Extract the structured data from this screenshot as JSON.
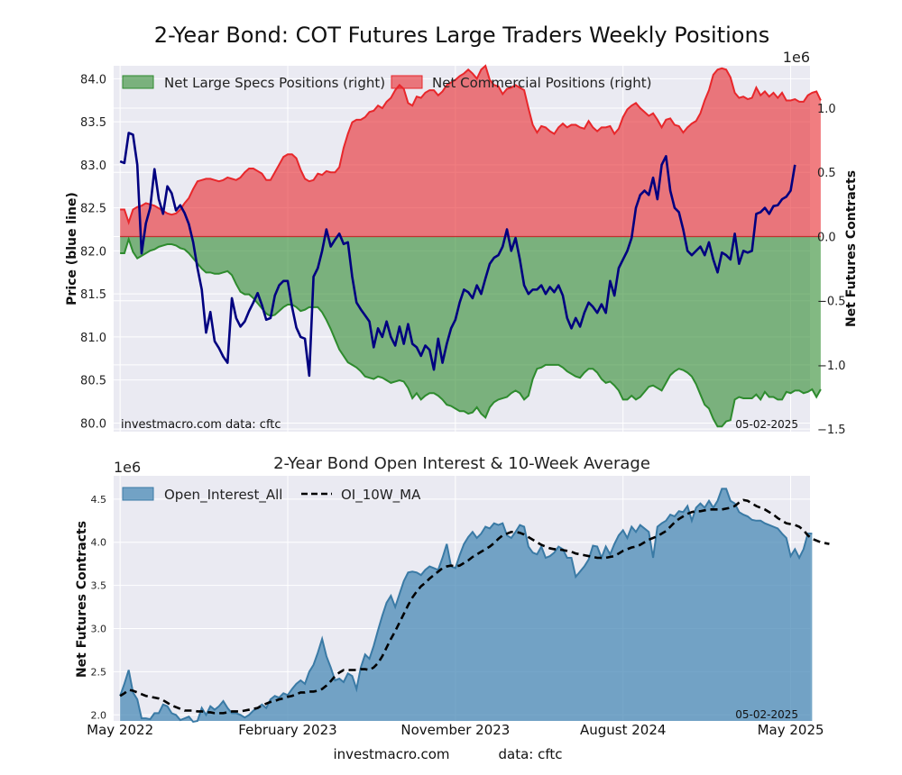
{
  "figure": {
    "title": "2-Year Bond: COT Futures Large Traders Weekly Positions",
    "footer_site": "investmacro.com",
    "footer_source": "data: cftc"
  },
  "chart_data": [
    {
      "type": "area",
      "title": "2-Year Bond: COT Futures Large Traders Weekly Positions",
      "ylabel_left": "Price (blue line)",
      "ylabel_right": "Net Futures Contracts",
      "right_axis_multiplier": "1e6",
      "ylim_left": [
        79.9,
        84.15
      ],
      "ylim_right": [
        -1.52,
        1.33
      ],
      "yticks_left": [
        "80.0",
        "80.5",
        "81.0",
        "81.5",
        "82.0",
        "82.5",
        "83.0",
        "83.5",
        "84.0"
      ],
      "yticks_right": [
        "−1.5",
        "−1.0",
        "−0.5",
        "0.0",
        "0.5",
        "1.0"
      ],
      "xlim": [
        -1.5,
        160.5
      ],
      "grid": true,
      "legend_placement": "top-left",
      "watermark_left": "investmacro.com   data: cftc",
      "date_label": "05-02-2025",
      "colors": {
        "specs": "#2e8b2e",
        "commercial": "#e8272b",
        "price": "#000080"
      },
      "series": [
        {
          "name": "Net Large Specs Positions (right)",
          "axis": "right",
          "values": [
            -0.13,
            -0.13,
            -0.02,
            -0.12,
            -0.17,
            -0.15,
            -0.13,
            -0.11,
            -0.1,
            -0.08,
            -0.07,
            -0.06,
            -0.06,
            -0.07,
            -0.09,
            -0.1,
            -0.13,
            -0.17,
            -0.21,
            -0.25,
            -0.28,
            -0.28,
            -0.29,
            -0.29,
            -0.28,
            -0.27,
            -0.3,
            -0.37,
            -0.43,
            -0.45,
            -0.45,
            -0.48,
            -0.52,
            -0.56,
            -0.6,
            -0.62,
            -0.61,
            -0.58,
            -0.55,
            -0.53,
            -0.53,
            -0.55,
            -0.58,
            -0.57,
            -0.55,
            -0.55,
            -0.55,
            -0.59,
            -0.65,
            -0.72,
            -0.8,
            -0.88,
            -0.93,
            -0.98,
            -1.0,
            -1.02,
            -1.05,
            -1.09,
            -1.1,
            -1.11,
            -1.09,
            -1.1,
            -1.12,
            -1.14,
            -1.13,
            -1.12,
            -1.13,
            -1.18,
            -1.26,
            -1.22,
            -1.27,
            -1.24,
            -1.22,
            -1.22,
            -1.24,
            -1.27,
            -1.31,
            -1.32,
            -1.34,
            -1.36,
            -1.36,
            -1.38,
            -1.37,
            -1.33,
            -1.38,
            -1.41,
            -1.33,
            -1.29,
            -1.27,
            -1.26,
            -1.25,
            -1.22,
            -1.2,
            -1.22,
            -1.27,
            -1.24,
            -1.11,
            -1.03,
            -1.02,
            -1.0,
            -1.0,
            -1.0,
            -1.0,
            -1.02,
            -1.05,
            -1.07,
            -1.09,
            -1.1,
            -1.06,
            -1.03,
            -1.03,
            -1.06,
            -1.11,
            -1.14,
            -1.13,
            -1.16,
            -1.2,
            -1.27,
            -1.27,
            -1.24,
            -1.27,
            -1.25,
            -1.21,
            -1.17,
            -1.16,
            -1.18,
            -1.2,
            -1.14,
            -1.08,
            -1.05,
            -1.03,
            -1.04,
            -1.06,
            -1.09,
            -1.15,
            -1.23,
            -1.31,
            -1.34,
            -1.42,
            -1.48,
            -1.48,
            -1.44,
            -1.43,
            -1.27,
            -1.25,
            -1.26,
            -1.26,
            -1.26,
            -1.23,
            -1.27,
            -1.21,
            -1.25,
            -1.25,
            -1.27,
            -1.27,
            -1.21,
            -1.22,
            -1.2,
            -1.2,
            -1.22,
            -1.21,
            -1.19,
            -1.25,
            -1.19
          ]
        },
        {
          "name": "Net Commercial Positions (right)",
          "axis": "right",
          "values": [
            0.21,
            0.21,
            0.11,
            0.21,
            0.23,
            0.24,
            0.26,
            0.25,
            0.24,
            0.22,
            0.2,
            0.18,
            0.17,
            0.18,
            0.21,
            0.26,
            0.3,
            0.37,
            0.43,
            0.44,
            0.45,
            0.45,
            0.44,
            0.43,
            0.44,
            0.46,
            0.45,
            0.44,
            0.46,
            0.5,
            0.53,
            0.53,
            0.51,
            0.49,
            0.44,
            0.44,
            0.5,
            0.56,
            0.62,
            0.64,
            0.64,
            0.61,
            0.52,
            0.45,
            0.43,
            0.44,
            0.49,
            0.48,
            0.51,
            0.5,
            0.5,
            0.54,
            0.69,
            0.8,
            0.89,
            0.91,
            0.91,
            0.93,
            0.97,
            0.98,
            1.02,
            1.0,
            1.05,
            1.08,
            1.14,
            1.18,
            1.15,
            1.04,
            1.02,
            1.09,
            1.08,
            1.12,
            1.14,
            1.14,
            1.1,
            1.13,
            1.18,
            1.2,
            1.22,
            1.25,
            1.27,
            1.3,
            1.27,
            1.23,
            1.3,
            1.33,
            1.22,
            1.18,
            1.17,
            1.11,
            1.15,
            1.16,
            1.18,
            1.16,
            1.14,
            1.0,
            0.87,
            0.81,
            0.86,
            0.85,
            0.82,
            0.8,
            0.85,
            0.88,
            0.85,
            0.87,
            0.87,
            0.85,
            0.84,
            0.9,
            0.85,
            0.82,
            0.85,
            0.85,
            0.86,
            0.8,
            0.84,
            0.93,
            0.99,
            1.02,
            1.04,
            1.0,
            0.97,
            0.94,
            0.96,
            0.91,
            0.85,
            0.91,
            0.92,
            0.87,
            0.86,
            0.81,
            0.85,
            0.88,
            0.9,
            0.96,
            1.06,
            1.14,
            1.26,
            1.3,
            1.31,
            1.3,
            1.24,
            1.12,
            1.08,
            1.09,
            1.07,
            1.08,
            1.16,
            1.1,
            1.13,
            1.09,
            1.12,
            1.08,
            1.12,
            1.06,
            1.06,
            1.07,
            1.05,
            1.05,
            1.1,
            1.12,
            1.13,
            1.06
          ]
        },
        {
          "name": "Price",
          "axis": "left",
          "type": "line",
          "values": [
            83.04,
            83.02,
            83.37,
            83.35,
            83.0,
            81.97,
            82.32,
            82.5,
            82.95,
            82.6,
            82.43,
            82.75,
            82.67,
            82.47,
            82.53,
            82.44,
            82.31,
            82.1,
            81.8,
            81.55,
            81.05,
            81.29,
            80.95,
            80.87,
            80.77,
            80.7,
            81.45,
            81.22,
            81.12,
            81.18,
            81.3,
            81.4,
            81.51,
            81.37,
            81.2,
            81.22,
            81.48,
            81.6,
            81.65,
            81.65,
            81.35,
            81.11,
            81.0,
            80.98,
            80.55,
            81.7,
            81.8,
            82.0,
            82.25,
            82.05,
            82.13,
            82.2,
            82.08,
            82.1,
            81.7,
            81.4,
            81.32,
            81.25,
            81.18,
            80.88,
            81.1,
            81.0,
            81.18,
            81.0,
            80.9,
            81.12,
            80.92,
            81.15,
            80.92,
            80.88,
            80.78,
            80.9,
            80.85,
            80.62,
            80.98,
            80.7,
            80.92,
            81.1,
            81.2,
            81.4,
            81.55,
            81.52,
            81.45,
            81.6,
            81.5,
            81.68,
            81.85,
            81.92,
            81.95,
            82.05,
            82.25,
            82.0,
            82.15,
            81.9,
            81.6,
            81.5,
            81.55,
            81.55,
            81.6,
            81.5,
            81.58,
            81.52,
            81.6,
            81.48,
            81.22,
            81.1,
            81.22,
            81.12,
            81.28,
            81.4,
            81.35,
            81.28,
            81.38,
            81.28,
            81.65,
            81.48,
            81.8,
            81.9,
            82.0,
            82.15,
            82.5,
            82.65,
            82.7,
            82.65,
            82.85,
            82.6,
            83.0,
            83.1,
            82.7,
            82.5,
            82.45,
            82.25,
            82.0,
            81.95,
            82.0,
            82.05,
            81.95,
            82.1,
            81.9,
            81.75,
            81.98,
            81.95,
            81.9,
            82.2,
            81.85,
            82.0,
            81.98,
            82.0,
            82.43,
            82.45,
            82.5,
            82.43,
            82.52,
            82.53,
            82.6,
            82.63,
            82.7,
            83.0
          ]
        }
      ]
    },
    {
      "type": "area",
      "title": "2-Year Bond Open Interest & 10-Week Average",
      "ylabel": "Net Futures Contracts",
      "axis_multiplier": "1e6",
      "ylim": [
        1.93,
        4.77
      ],
      "yticks": [
        "2.0",
        "2.5",
        "3.0",
        "3.5",
        "4.0",
        "4.5"
      ],
      "xlim": [
        -1.5,
        160.5
      ],
      "x_ticks": [
        "May 2022",
        "February 2023",
        "November 2023",
        "August 2024",
        "May 2025"
      ],
      "x_tick_positions": [
        0,
        39,
        78,
        117,
        156
      ],
      "grid": true,
      "legend_placement": "top-left",
      "date_label": "05-02-2025",
      "colors": {
        "open_interest": "#4a8ab5",
        "ma": "#000000"
      },
      "series": [
        {
          "name": "Open_Interest_All",
          "values": [
            2.22,
            2.36,
            2.52,
            2.26,
            2.18,
            1.96,
            1.96,
            1.95,
            2.02,
            2.02,
            2.12,
            2.1,
            2.02,
            2.0,
            1.94,
            1.96,
            1.98,
            1.92,
            1.93,
            2.08,
            2.0,
            2.1,
            2.06,
            2.1,
            2.16,
            2.08,
            2.02,
            2.02,
            2.0,
            1.97,
            2.0,
            2.05,
            2.08,
            2.12,
            2.08,
            2.18,
            2.22,
            2.2,
            2.25,
            2.23,
            2.3,
            2.36,
            2.4,
            2.36,
            2.5,
            2.58,
            2.72,
            2.88,
            2.68,
            2.55,
            2.4,
            2.42,
            2.38,
            2.48,
            2.45,
            2.3,
            2.55,
            2.7,
            2.65,
            2.8,
            2.98,
            3.15,
            3.3,
            3.38,
            3.25,
            3.4,
            3.55,
            3.65,
            3.66,
            3.65,
            3.62,
            3.68,
            3.72,
            3.7,
            3.68,
            3.82,
            3.98,
            3.72,
            3.7,
            3.85,
            3.98,
            4.06,
            4.12,
            4.05,
            4.1,
            4.18,
            4.16,
            4.22,
            4.2,
            4.22,
            4.08,
            4.05,
            4.12,
            4.2,
            4.18,
            3.95,
            3.88,
            3.86,
            3.95,
            3.82,
            3.84,
            3.88,
            3.95,
            3.92,
            3.82,
            3.82,
            3.6,
            3.66,
            3.72,
            3.8,
            3.96,
            3.95,
            3.82,
            3.95,
            3.86,
            3.98,
            4.08,
            4.14,
            4.05,
            4.18,
            4.12,
            4.2,
            4.16,
            4.12,
            3.82,
            4.18,
            4.22,
            4.25,
            4.32,
            4.3,
            4.36,
            4.35,
            4.42,
            4.25,
            4.4,
            4.45,
            4.4,
            4.48,
            4.4,
            4.48,
            4.62,
            4.62,
            4.48,
            4.45,
            4.35,
            4.32,
            4.3,
            4.26,
            4.25,
            4.25,
            4.22,
            4.2,
            4.18,
            4.16,
            4.1,
            4.05,
            3.84,
            3.92,
            3.82,
            3.92,
            4.1,
            4.1
          ]
        },
        {
          "name": "OI_10W_MA",
          "style": "dashed",
          "values": [
            2.22,
            2.25,
            2.29,
            2.28,
            2.26,
            2.24,
            2.22,
            2.21,
            2.2,
            2.19,
            2.17,
            2.14,
            2.11,
            2.09,
            2.07,
            2.05,
            2.05,
            2.05,
            2.04,
            2.04,
            2.03,
            2.03,
            2.02,
            2.02,
            2.02,
            2.03,
            2.04,
            2.04,
            2.04,
            2.05,
            2.06,
            2.07,
            2.08,
            2.11,
            2.13,
            2.15,
            2.16,
            2.18,
            2.19,
            2.21,
            2.22,
            2.24,
            2.26,
            2.26,
            2.27,
            2.27,
            2.28,
            2.3,
            2.34,
            2.39,
            2.45,
            2.49,
            2.52,
            2.52,
            2.52,
            2.52,
            2.53,
            2.53,
            2.52,
            2.55,
            2.6,
            2.68,
            2.78,
            2.88,
            2.97,
            3.07,
            3.17,
            3.27,
            3.36,
            3.43,
            3.49,
            3.53,
            3.58,
            3.62,
            3.66,
            3.7,
            3.72,
            3.73,
            3.72,
            3.73,
            3.76,
            3.79,
            3.83,
            3.86,
            3.89,
            3.92,
            3.95,
            3.99,
            4.04,
            4.08,
            4.1,
            4.12,
            4.12,
            4.11,
            4.09,
            4.06,
            4.03,
            4.0,
            3.97,
            3.95,
            3.93,
            3.92,
            3.92,
            3.91,
            3.9,
            3.89,
            3.87,
            3.86,
            3.85,
            3.84,
            3.83,
            3.82,
            3.82,
            3.82,
            3.83,
            3.84,
            3.87,
            3.9,
            3.92,
            3.94,
            3.95,
            3.97,
            4.0,
            4.03,
            4.05,
            4.07,
            4.1,
            4.13,
            4.18,
            4.23,
            4.27,
            4.3,
            4.33,
            4.35,
            4.36,
            4.36,
            4.37,
            4.38,
            4.38,
            4.38,
            4.38,
            4.39,
            4.4,
            4.42,
            4.46,
            4.49,
            4.48,
            4.45,
            4.42,
            4.4,
            4.38,
            4.35,
            4.32,
            4.28,
            4.25,
            4.22,
            4.21,
            4.2,
            4.18,
            4.14,
            4.08,
            4.04,
            4.02,
            4.0,
            3.99,
            3.98
          ]
        }
      ]
    }
  ]
}
